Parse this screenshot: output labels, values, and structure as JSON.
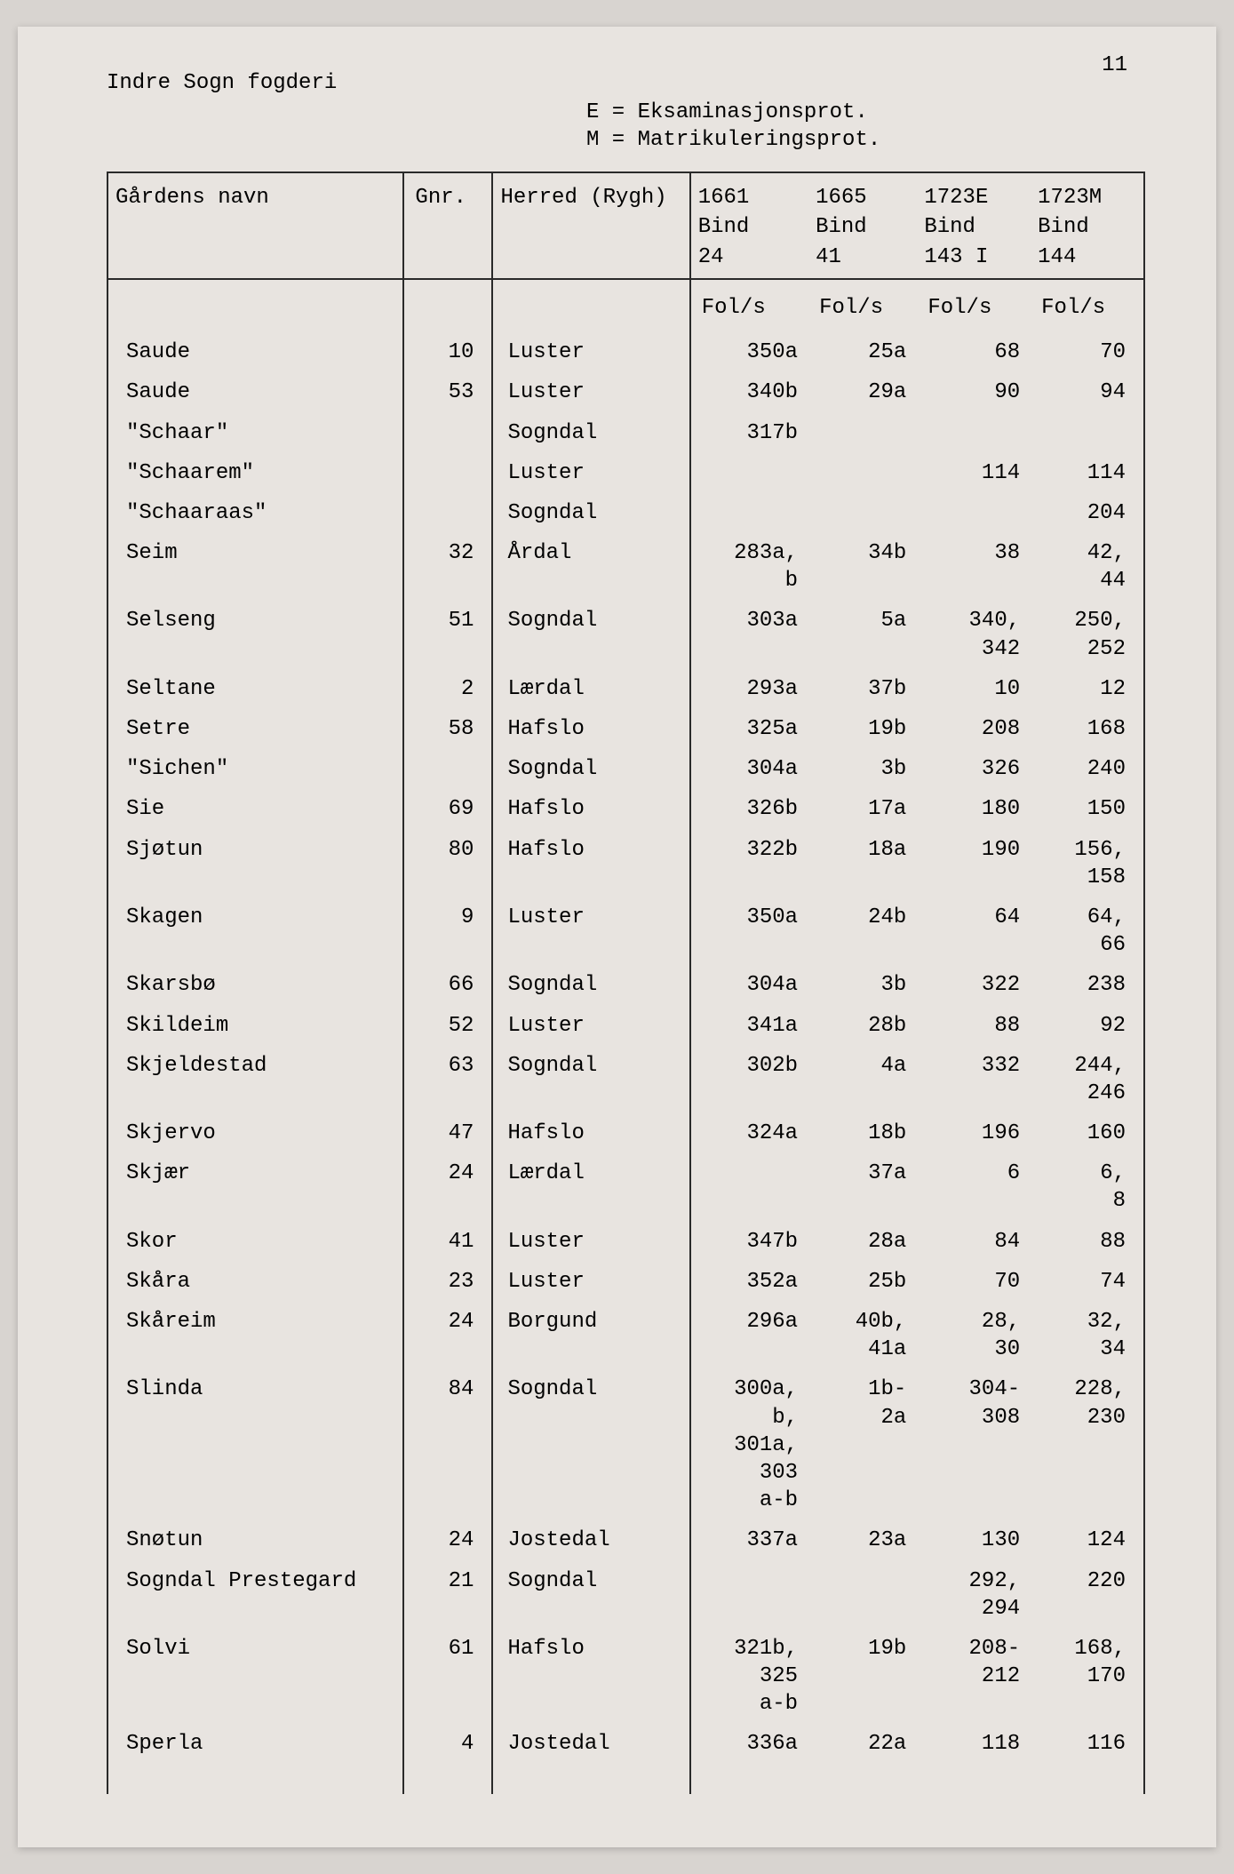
{
  "page_number": "11",
  "title": "Indre Sogn fogderi",
  "legend_e": "E = Eksaminasjonsprot.",
  "legend_m": "M = Matrikuleringsprot.",
  "columns": {
    "name": "Gårdens\nnavn",
    "gnr": "Gnr.",
    "herred": "Herred\n(Rygh)",
    "c1661": "1661\nBind",
    "c1665": "1665\nBind",
    "c1723e": "1723E\nBind",
    "c1723m": "1723M\nBind"
  },
  "bind": {
    "c1661": "24",
    "c1665": "41",
    "c1723e": "143 I",
    "c1723m": "144"
  },
  "fols_label": "Fol/s",
  "rows": [
    {
      "name": "Saude",
      "gnr": "10",
      "herred": "Luster",
      "c1661": "350a",
      "c1665": "25a",
      "c1723e": "68",
      "c1723m": "70"
    },
    {
      "name": "Saude",
      "gnr": "53",
      "herred": "Luster",
      "c1661": "340b",
      "c1665": "29a",
      "c1723e": "90",
      "c1723m": "94"
    },
    {
      "name": "\"Schaar\"",
      "gnr": "",
      "herred": "Sogndal",
      "c1661": "317b",
      "c1665": "",
      "c1723e": "",
      "c1723m": ""
    },
    {
      "name": "\"Schaarem\"",
      "gnr": "",
      "herred": "Luster",
      "c1661": "",
      "c1665": "",
      "c1723e": "114",
      "c1723m": "114"
    },
    {
      "name": "\"Schaaraas\"",
      "gnr": "",
      "herred": "Sogndal",
      "c1661": "",
      "c1665": "",
      "c1723e": "",
      "c1723m": "204"
    },
    {
      "name": "Seim",
      "gnr": "32",
      "herred": "Årdal",
      "c1661": "283a,\nb",
      "c1665": "34b",
      "c1723e": "38",
      "c1723m": "42,\n44"
    },
    {
      "name": "Selseng",
      "gnr": "51",
      "herred": "Sogndal",
      "c1661": "303a",
      "c1665": "5a",
      "c1723e": "340,\n342",
      "c1723m": "250,\n252"
    },
    {
      "name": "Seltane",
      "gnr": "2",
      "herred": "Lærdal",
      "c1661": "293a",
      "c1665": "37b",
      "c1723e": "10",
      "c1723m": "12"
    },
    {
      "name": "Setre",
      "gnr": "58",
      "herred": "Hafslo",
      "c1661": "325a",
      "c1665": "19b",
      "c1723e": "208",
      "c1723m": "168"
    },
    {
      "name": "\"Sichen\"",
      "gnr": "",
      "herred": "Sogndal",
      "c1661": "304a",
      "c1665": "3b",
      "c1723e": "326",
      "c1723m": "240"
    },
    {
      "name": "Sie",
      "gnr": "69",
      "herred": "Hafslo",
      "c1661": "326b",
      "c1665": "17a",
      "c1723e": "180",
      "c1723m": "150"
    },
    {
      "name": "Sjøtun",
      "gnr": "80",
      "herred": "Hafslo",
      "c1661": "322b",
      "c1665": "18a",
      "c1723e": "190",
      "c1723m": "156,\n158"
    },
    {
      "name": "Skagen",
      "gnr": "9",
      "herred": "Luster",
      "c1661": "350a",
      "c1665": "24b",
      "c1723e": "64",
      "c1723m": "64,\n66"
    },
    {
      "name": "Skarsbø",
      "gnr": "66",
      "herred": "Sogndal",
      "c1661": "304a",
      "c1665": "3b",
      "c1723e": "322",
      "c1723m": "238"
    },
    {
      "name": "Skildeim",
      "gnr": "52",
      "herred": "Luster",
      "c1661": "341a",
      "c1665": "28b",
      "c1723e": "88",
      "c1723m": "92"
    },
    {
      "name": "Skjeldestad",
      "gnr": "63",
      "herred": "Sogndal",
      "c1661": "302b",
      "c1665": "4a",
      "c1723e": "332",
      "c1723m": "244,\n246"
    },
    {
      "name": "Skjervo",
      "gnr": "47",
      "herred": "Hafslo",
      "c1661": "324a",
      "c1665": "18b",
      "c1723e": "196",
      "c1723m": "160"
    },
    {
      "name": "Skjær",
      "gnr": "24",
      "herred": "Lærdal",
      "c1661": "",
      "c1665": "37a",
      "c1723e": "6",
      "c1723m": "6,\n8"
    },
    {
      "name": "Skor",
      "gnr": "41",
      "herred": "Luster",
      "c1661": "347b",
      "c1665": "28a",
      "c1723e": "84",
      "c1723m": "88"
    },
    {
      "name": "Skåra",
      "gnr": "23",
      "herred": "Luster",
      "c1661": "352a",
      "c1665": "25b",
      "c1723e": "70",
      "c1723m": "74"
    },
    {
      "name": "Skåreim",
      "gnr": "24",
      "herred": "Borgund",
      "c1661": "296a",
      "c1665": "40b,\n41a",
      "c1723e": "28,\n30",
      "c1723m": "32,\n34"
    },
    {
      "name": "Slinda",
      "gnr": "84",
      "herred": "Sogndal",
      "c1661": "300a,\nb,\n301a,\n303\na-b",
      "c1665": "1b-\n2a",
      "c1723e": "304-\n308",
      "c1723m": "228,\n230"
    },
    {
      "name": "Snøtun",
      "gnr": "24",
      "herred": "Jostedal",
      "c1661": "337a",
      "c1665": "23a",
      "c1723e": "130",
      "c1723m": "124"
    },
    {
      "name": "Sogndal Prestegard",
      "gnr": "21",
      "herred": "Sogndal",
      "c1661": "",
      "c1665": "",
      "c1723e": "292,\n294",
      "c1723m": "220"
    },
    {
      "name": "Solvi",
      "gnr": "61",
      "herred": "Hafslo",
      "c1661": "321b,\n325\na-b",
      "c1665": "19b",
      "c1723e": "208-\n212",
      "c1723m": "168,\n170"
    },
    {
      "name": "Sperla",
      "gnr": "4",
      "herred": "Jostedal",
      "c1661": "336a",
      "c1665": "22a",
      "c1723e": "118",
      "c1723m": "116"
    }
  ],
  "colors": {
    "page_bg": "#e8e4e0",
    "body_bg": "#d8d4d0",
    "border": "#2a2a2a",
    "text": "#1a1a1a"
  },
  "typography": {
    "font_family": "Courier New, monospace",
    "font_size_pt": 18
  }
}
